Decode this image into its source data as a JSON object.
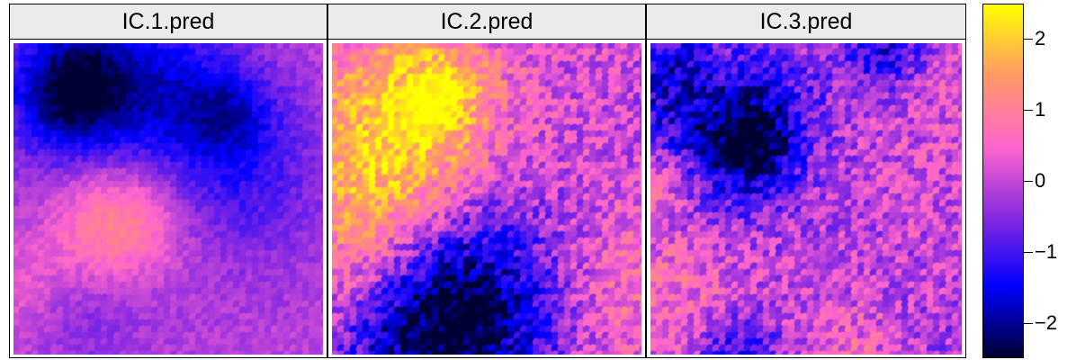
{
  "chart_data": {
    "type": "heatmap",
    "panels": [
      {
        "title": "IC.1.pred"
      },
      {
        "title": "IC.2.pred"
      },
      {
        "title": "IC.3.pred"
      }
    ],
    "colorkey": {
      "range": [
        -2.5,
        2.5
      ],
      "ticks": [
        {
          "value": 2,
          "label": "2"
        },
        {
          "value": 1,
          "label": "1"
        },
        {
          "value": 0,
          "label": "0"
        },
        {
          "value": -1,
          "label": "−1"
        },
        {
          "value": -2,
          "label": "−2"
        }
      ],
      "colors": [
        "#000033",
        "#0000ff",
        "#8a2be2",
        "#ff66cc",
        "#ff9966",
        "#ffff00"
      ]
    },
    "strip_background": "#ebebeb"
  }
}
